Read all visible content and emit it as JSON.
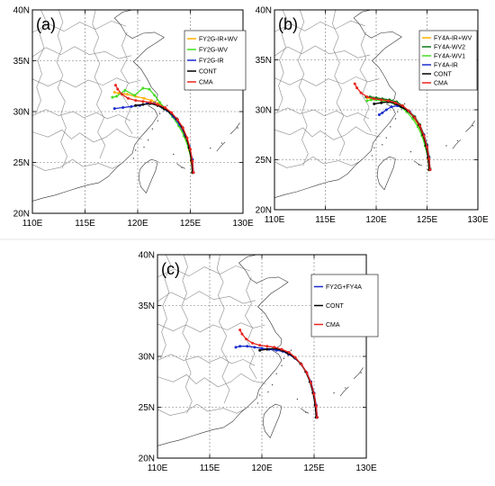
{
  "figure": {
    "separator_color": "#e6e6e6"
  },
  "chart_data": [
    {
      "type": "line",
      "panel_label": "(a)",
      "xlim": [
        110,
        130
      ],
      "ylim": [
        20,
        40
      ],
      "xticks": [
        "110E",
        "115E",
        "120E",
        "125E",
        "130E"
      ],
      "yticks": [
        "20N",
        "25N",
        "30N",
        "35N",
        "40N"
      ],
      "grid": true,
      "legend_position": "top-right",
      "series": [
        {
          "name": "FY2G-IR+WV",
          "color": "#ffb000",
          "x": [
            125.2,
            125.1,
            124.9,
            124.6,
            124.2,
            123.7,
            123.2,
            122.6,
            122.0,
            121.3,
            120.6,
            119.8,
            119.0,
            118.2,
            117.8
          ],
          "y": [
            24.0,
            25.0,
            26.2,
            27.3,
            28.3,
            29.2,
            29.9,
            30.4,
            30.8,
            31.1,
            31.3,
            31.5,
            31.7,
            31.8,
            31.9
          ]
        },
        {
          "name": "FY2G-WV",
          "color": "#44dd22",
          "x": [
            125.2,
            125.1,
            124.8,
            124.4,
            123.9,
            123.3,
            122.7,
            122.1,
            121.6,
            121.1,
            120.5,
            119.7,
            118.8,
            118.0,
            117.6
          ],
          "y": [
            24.1,
            25.2,
            26.5,
            27.6,
            28.6,
            29.5,
            30.2,
            30.9,
            31.6,
            32.2,
            32.3,
            31.6,
            32.1,
            31.5,
            31.4
          ]
        },
        {
          "name": "FY2G-IR",
          "color": "#1a2ccc",
          "x": [
            125.3,
            125.2,
            124.9,
            124.5,
            124.0,
            123.4,
            122.8,
            122.2,
            121.6,
            120.9,
            120.2,
            119.4,
            118.6,
            117.8
          ],
          "y": [
            24.0,
            25.3,
            26.6,
            27.7,
            28.7,
            29.5,
            30.1,
            30.5,
            30.8,
            30.8,
            30.6,
            30.5,
            30.4,
            30.3
          ]
        },
        {
          "name": "CONT",
          "color": "#000000",
          "x": [
            125.2,
            125.1,
            124.9,
            124.6,
            124.2,
            123.7,
            123.1,
            122.5,
            121.9,
            121.2,
            120.5,
            119.8
          ],
          "y": [
            24.0,
            25.2,
            26.4,
            27.5,
            28.5,
            29.3,
            29.9,
            30.3,
            30.6,
            30.8,
            30.7,
            30.6
          ]
        },
        {
          "name": "CMA",
          "color": "#e8251f",
          "x": [
            125.3,
            125.2,
            125.0,
            124.7,
            124.3,
            123.8,
            123.2,
            122.6,
            121.9,
            121.2,
            120.5,
            119.8,
            119.1,
            118.5,
            118.1,
            117.9
          ],
          "y": [
            24.0,
            25.1,
            26.3,
            27.4,
            28.4,
            29.2,
            29.9,
            30.4,
            30.7,
            30.9,
            31.0,
            31.1,
            31.3,
            31.7,
            32.2,
            32.6
          ]
        }
      ]
    },
    {
      "type": "line",
      "panel_label": "(b)",
      "xlim": [
        110,
        130
      ],
      "ylim": [
        20,
        40
      ],
      "xticks": [
        "110E",
        "115E",
        "120E",
        "125E",
        "130E"
      ],
      "yticks": [
        "20N",
        "25N",
        "30N",
        "35N",
        "40N"
      ],
      "grid": true,
      "legend_position": "top-right",
      "series": [
        {
          "name": "FY4A-IR+WV",
          "color": "#ffb000",
          "x": [
            125.2,
            125.1,
            124.9,
            124.6,
            124.2,
            123.7,
            123.2,
            122.6,
            122.0,
            121.4,
            120.8,
            120.2,
            119.6,
            119.1
          ],
          "y": [
            24.0,
            25.1,
            26.3,
            27.4,
            28.4,
            29.2,
            29.9,
            30.4,
            30.7,
            30.9,
            31.0,
            31.1,
            31.1,
            31.2
          ]
        },
        {
          "name": "FY4A-WV2",
          "color": "#0a7a1a",
          "x": [
            125.3,
            125.2,
            125.0,
            124.7,
            124.3,
            123.8,
            123.2,
            122.6,
            122.0,
            121.3,
            120.6,
            120.0,
            119.4,
            119.0
          ],
          "y": [
            24.1,
            25.3,
            26.5,
            27.5,
            28.5,
            29.3,
            29.9,
            30.4,
            30.8,
            31.0,
            31.1,
            31.2,
            31.3,
            31.3
          ]
        },
        {
          "name": "FY4A-WV1",
          "color": "#44dd22",
          "x": [
            125.2,
            125.1,
            124.8,
            124.5,
            124.1,
            123.6,
            123.0,
            122.4,
            121.8,
            121.2,
            120.6,
            120.0,
            119.5,
            119.1
          ],
          "y": [
            24.0,
            25.2,
            26.4,
            27.4,
            28.3,
            29.1,
            29.8,
            30.3,
            30.6,
            30.8,
            30.9,
            31.0,
            31.0,
            30.9
          ]
        },
        {
          "name": "FY4A-IR",
          "color": "#1a2ccc",
          "x": [
            125.3,
            125.2,
            125.0,
            124.7,
            124.3,
            123.8,
            123.3,
            122.7,
            122.1,
            121.5,
            121.0,
            120.6,
            120.3
          ],
          "y": [
            24.0,
            25.2,
            26.4,
            27.5,
            28.4,
            29.2,
            29.8,
            30.2,
            30.4,
            30.3,
            30.0,
            29.7,
            29.5
          ]
        },
        {
          "name": "CONT",
          "color": "#000000",
          "x": [
            125.2,
            125.1,
            124.9,
            124.6,
            124.2,
            123.7,
            123.1,
            122.5,
            121.9,
            121.2,
            120.5,
            119.8
          ],
          "y": [
            24.0,
            25.2,
            26.4,
            27.5,
            28.5,
            29.3,
            29.9,
            30.3,
            30.6,
            30.8,
            30.7,
            30.6
          ]
        },
        {
          "name": "CMA",
          "color": "#e8251f",
          "x": [
            125.3,
            125.2,
            125.0,
            124.7,
            124.3,
            123.8,
            123.2,
            122.6,
            121.9,
            121.2,
            120.5,
            119.8,
            119.1,
            118.5,
            118.1,
            117.9
          ],
          "y": [
            24.0,
            25.1,
            26.3,
            27.4,
            28.4,
            29.2,
            29.9,
            30.4,
            30.7,
            30.9,
            31.0,
            31.1,
            31.3,
            31.7,
            32.2,
            32.6
          ]
        }
      ]
    },
    {
      "type": "line",
      "panel_label": "(c)",
      "xlim": [
        110,
        130
      ],
      "ylim": [
        20,
        40
      ],
      "xticks": [
        "110E",
        "115E",
        "120E",
        "125E",
        "130E"
      ],
      "yticks": [
        "20N",
        "25N",
        "30N",
        "35N",
        "40N"
      ],
      "grid": true,
      "legend_position": "top-right",
      "series": [
        {
          "name": "FY2G+FY4A",
          "color": "#1a2ccc",
          "x": [
            125.3,
            125.2,
            125.0,
            124.7,
            124.3,
            123.8,
            123.2,
            122.6,
            122.0,
            121.4,
            120.7,
            120.0,
            119.3,
            118.6,
            117.9,
            117.5
          ],
          "y": [
            24.0,
            25.2,
            26.4,
            27.5,
            28.4,
            29.2,
            29.8,
            30.2,
            30.5,
            30.6,
            30.7,
            30.8,
            30.9,
            31.0,
            31.0,
            30.9
          ]
        },
        {
          "name": "CONT",
          "color": "#000000",
          "x": [
            125.2,
            125.1,
            124.9,
            124.6,
            124.2,
            123.7,
            123.1,
            122.5,
            121.9,
            121.2,
            120.5,
            119.8
          ],
          "y": [
            24.0,
            25.2,
            26.4,
            27.5,
            28.5,
            29.3,
            29.9,
            30.3,
            30.6,
            30.8,
            30.7,
            30.6
          ]
        },
        {
          "name": "CMA",
          "color": "#e8251f",
          "x": [
            125.3,
            125.2,
            125.0,
            124.7,
            124.3,
            123.8,
            123.2,
            122.6,
            121.9,
            121.2,
            120.5,
            119.8,
            119.1,
            118.5,
            118.1,
            117.9
          ],
          "y": [
            24.0,
            25.1,
            26.3,
            27.4,
            28.4,
            29.2,
            29.9,
            30.4,
            30.7,
            30.9,
            31.0,
            31.1,
            31.3,
            31.7,
            32.2,
            32.6
          ]
        }
      ]
    }
  ]
}
